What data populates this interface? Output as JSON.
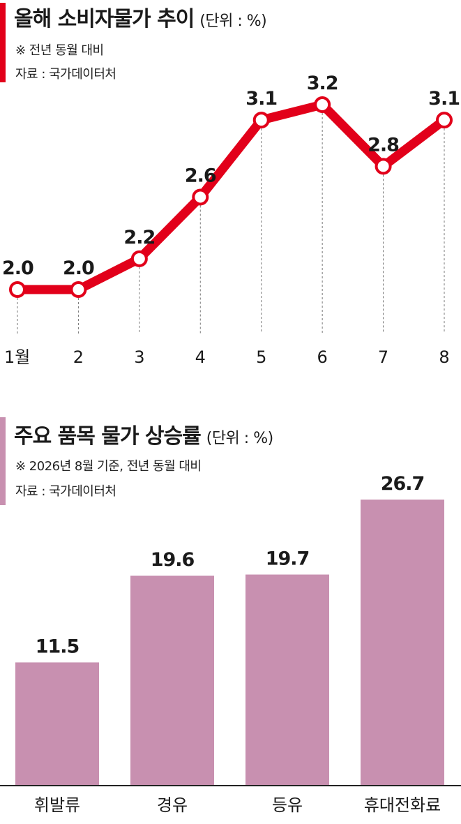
{
  "colors": {
    "line": "#e2001a",
    "bar": "#c890b0",
    "accent_line": "#e2001a",
    "accent_bar": "#c890b0"
  },
  "chart_data": [
    {
      "type": "line",
      "title": "올해 소비자물가 추이",
      "unit": "(단위 : %)",
      "note": "※ 전년 동월 대비",
      "source": "자료 : 국가데이터처",
      "categories": [
        "1월",
        "2",
        "3",
        "4",
        "5",
        "6",
        "7",
        "8"
      ],
      "series": [
        {
          "values": [
            2.0,
            2.0,
            2.2,
            2.6,
            3.1,
            3.2,
            2.8,
            3.1
          ]
        }
      ],
      "value_labels": [
        "2.0",
        "2.0",
        "2.2",
        "2.6",
        "3.1",
        "3.2",
        "2.8",
        "3.1"
      ],
      "ylim": [
        1.6,
        3.4
      ],
      "grid": false
    },
    {
      "type": "bar",
      "title": "주요 품목 물가 상승률",
      "unit": "(단위 : %)",
      "note": "※ 2026년 8월 기준, 전년 동월 대비",
      "source": "자료 : 국가데이터처",
      "categories": [
        "휘발류",
        "경유",
        "등유",
        "휴대전화료"
      ],
      "values": [
        11.5,
        19.6,
        19.7,
        26.7
      ],
      "value_labels": [
        "11.5",
        "19.6",
        "19.7",
        "26.7"
      ],
      "ylim": [
        0,
        26.7
      ],
      "grid": false
    }
  ]
}
